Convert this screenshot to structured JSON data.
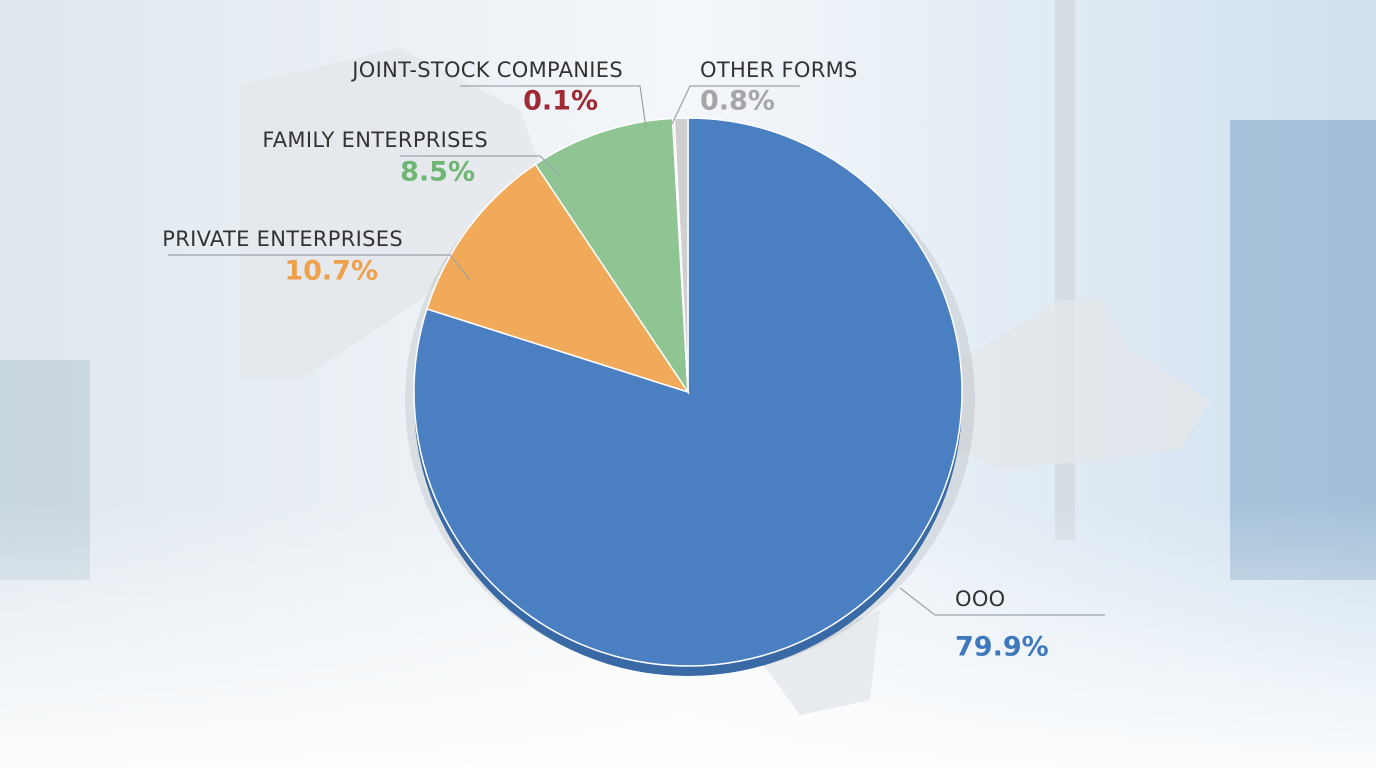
{
  "chart_data": {
    "type": "pie",
    "categories": [
      "OOO",
      "PRIVATE ENTERPRISES",
      "FAMILY ENTERPRISES",
      "JOINT-STOCK COMPANIES",
      "OTHER FORMS"
    ],
    "values": [
      79.9,
      10.7,
      8.5,
      0.1,
      0.8
    ],
    "value_labels": [
      "79.9%",
      "10.7%",
      "8.5%",
      "0.1%",
      "0.8%"
    ],
    "colors": [
      "#4a80c2",
      "#f0aa5a",
      "#8fc592",
      "#b5313a",
      "#cfcfcf"
    ],
    "label_colors": [
      "#3f78bd",
      "#efa04a",
      "#6fb574",
      "#a02a33",
      "#a6a6a6"
    ]
  }
}
